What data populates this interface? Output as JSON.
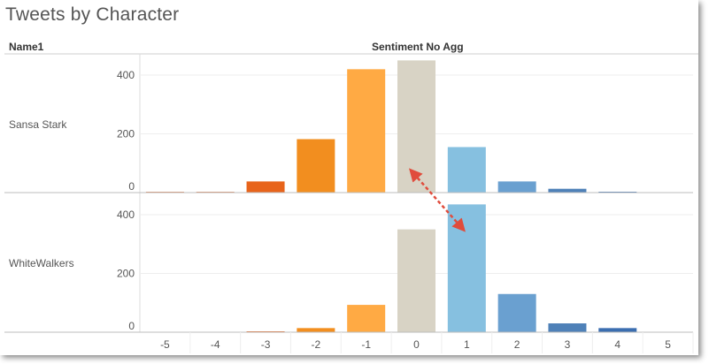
{
  "title": "Tweets by Character",
  "row_header": "Name1",
  "column_header": "Sentiment No Agg",
  "chart_data": {
    "type": "bar",
    "title": "Tweets by Character",
    "xlabel": "Sentiment No Agg",
    "categories": [
      -5,
      -4,
      -3,
      -2,
      -1,
      0,
      1,
      2,
      3,
      4,
      5
    ],
    "x_tick_labels": [
      "-5",
      "-4",
      "-3",
      "-2",
      "-1",
      "0",
      "1",
      "2",
      "3",
      "4",
      "5"
    ],
    "y_ticks": [
      0,
      200,
      400
    ],
    "ylim": [
      0,
      480
    ],
    "grid": true,
    "colors": [
      "#e0895a",
      "#e0895a",
      "#e8641b",
      "#f28e1f",
      "#ffaa44",
      "#d8d3c5",
      "#86c0e0",
      "#6aa0d0",
      "#4f81b8",
      "#3b6eb0",
      "#3b6eb0"
    ],
    "panels": [
      {
        "name": "Sansa Stark",
        "values": [
          3,
          3,
          38,
          182,
          420,
          450,
          155,
          38,
          13,
          3,
          0
        ]
      },
      {
        "name": "WhiteWalkers",
        "values": [
          0,
          0,
          3,
          14,
          93,
          350,
          435,
          130,
          30,
          14,
          0
        ]
      }
    ]
  }
}
